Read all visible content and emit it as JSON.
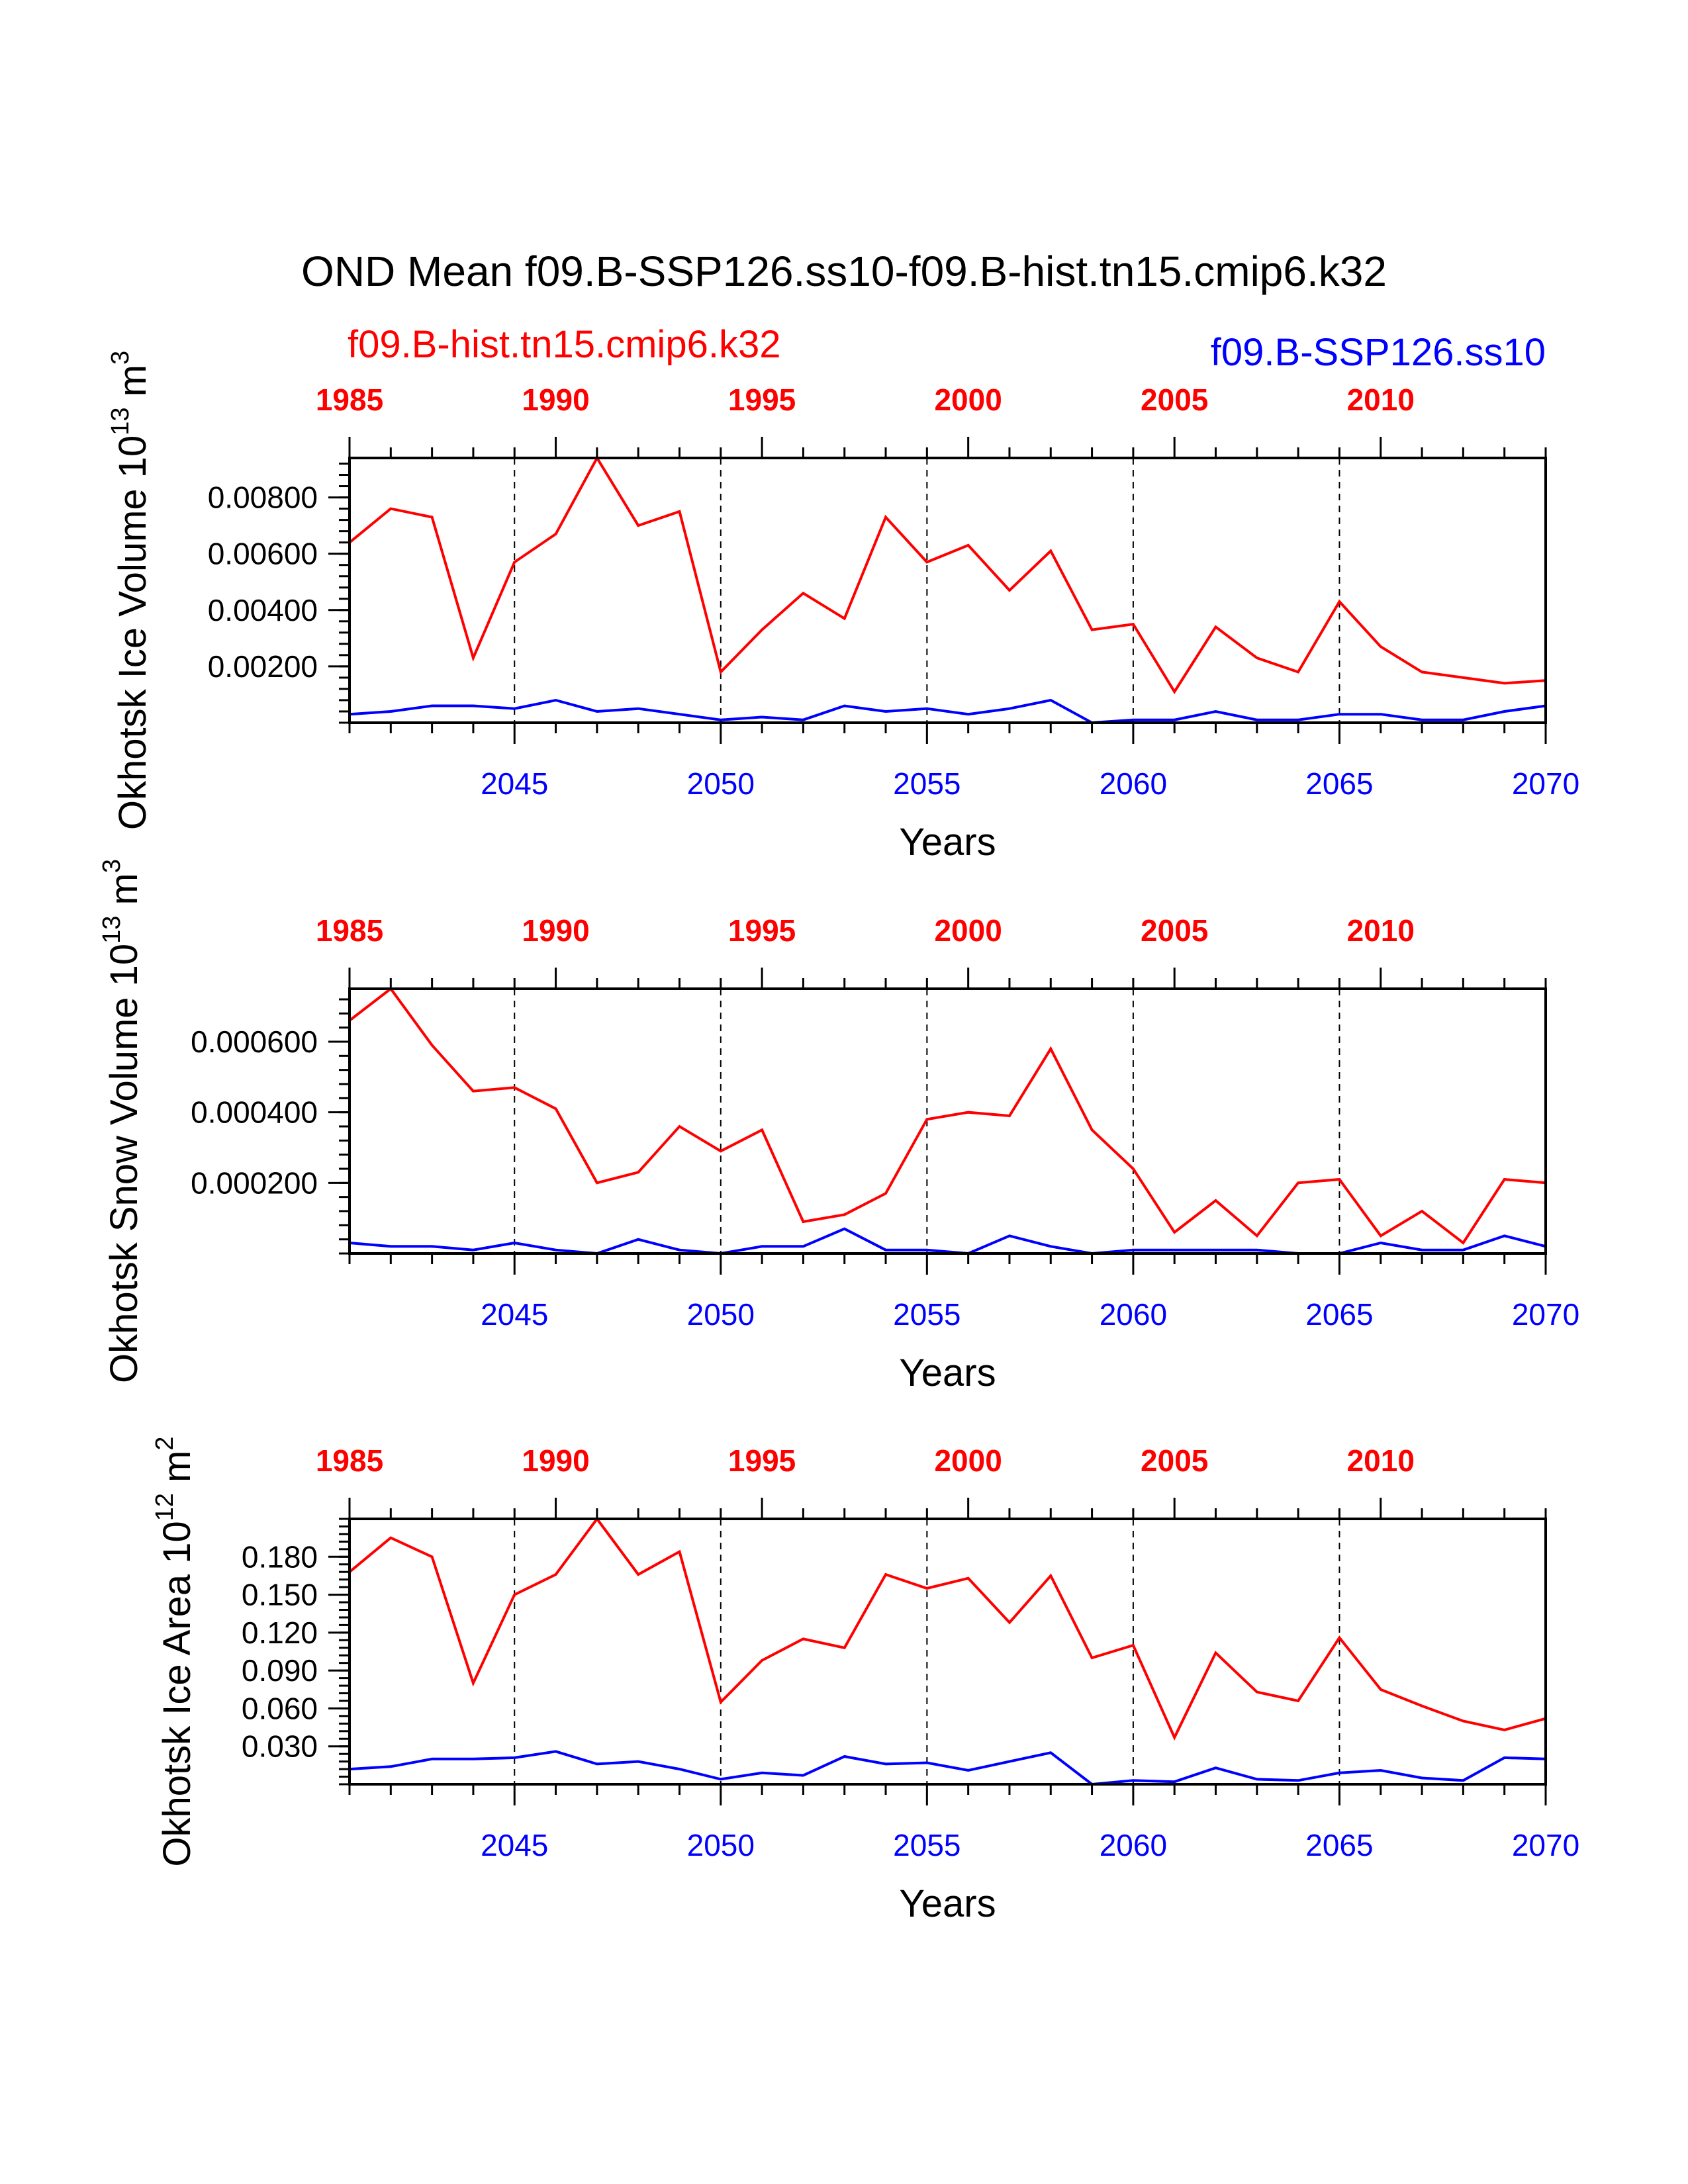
{
  "figure_title": "OND Mean f09.B-SSP126.ss10-f09.B-hist.tn15.cmip6.k32",
  "legend": {
    "left_label": "f09.B-hist.tn15.cmip6.k32",
    "right_label": "f09.B-SSP126.ss10"
  },
  "colors": {
    "hist": "#ff0000",
    "ssp": "#0000ff",
    "axis": "#000000"
  },
  "chart_data": [
    {
      "type": "line",
      "ylabel": "Okhotsk Ice Volume 10",
      "ylabel_exp": "13",
      "ylabel_unit": " m",
      "ylabel_unit_exp": "3",
      "xlabel": "Years",
      "ylim": [
        0,
        0.0094
      ],
      "yticks": [
        0.002,
        0.004,
        0.006,
        0.008
      ],
      "ytick_labels": [
        "0.00200",
        "0.00400",
        "0.00600",
        "0.00800"
      ],
      "grid_x": [
        2045,
        2050,
        2055,
        2060,
        2065
      ],
      "bottom_axis": {
        "range": [
          2041,
          2070
        ],
        "ticks": [
          2045,
          2050,
          2055,
          2060,
          2065,
          2070
        ],
        "labels": [
          "2045",
          "2050",
          "2055",
          "2060",
          "2065",
          "2070"
        ]
      },
      "top_axis": {
        "range": [
          1985,
          2014
        ],
        "ticks": [
          1985,
          1990,
          1995,
          2000,
          2005,
          2010
        ],
        "labels": [
          "1985",
          "1990",
          "1995",
          "2000",
          "2005",
          "2010"
        ]
      },
      "series": [
        {
          "name": "f09.B-hist.tn15.cmip6.k32",
          "color": "#ff0000",
          "values": [
            0.0064,
            0.0076,
            0.0073,
            0.0023,
            0.0057,
            0.0067,
            0.0094,
            0.007,
            0.0075,
            0.0018,
            0.0033,
            0.0046,
            0.0037,
            0.0073,
            0.0057,
            0.0063,
            0.0047,
            0.0061,
            0.0033,
            0.0035,
            0.0011,
            0.0034,
            0.0023,
            0.0018,
            0.0043,
            0.0027,
            0.0018,
            0.0016,
            0.0014,
            0.0015
          ]
        },
        {
          "name": "f09.B-SSP126.ss10",
          "color": "#0000ff",
          "values": [
            0.0003,
            0.0004,
            0.0006,
            0.0006,
            0.0005,
            0.0008,
            0.0004,
            0.0005,
            0.0003,
            0.0001,
            0.0002,
            0.0001,
            0.0006,
            0.0004,
            0.0005,
            0.0003,
            0.0005,
            0.0008,
            0.0,
            0.0001,
            0.0001,
            0.0004,
            0.0001,
            0.0001,
            0.0003,
            0.0003,
            0.0001,
            0.0001,
            0.0004,
            0.0006
          ]
        }
      ]
    },
    {
      "type": "line",
      "ylabel": "Okhotsk Snow Volume 10",
      "ylabel_exp": "13",
      "ylabel_unit": " m",
      "ylabel_unit_exp": "3",
      "xlabel": "Years",
      "ylim": [
        0,
        0.00075
      ],
      "yticks": [
        0.0002,
        0.0004,
        0.0006
      ],
      "ytick_labels": [
        "0.000200",
        "0.000400",
        "0.000600"
      ],
      "grid_x": [
        2045,
        2050,
        2055,
        2060,
        2065
      ],
      "bottom_axis": {
        "range": [
          2041,
          2070
        ],
        "ticks": [
          2045,
          2050,
          2055,
          2060,
          2065,
          2070
        ],
        "labels": [
          "2045",
          "2050",
          "2055",
          "2060",
          "2065",
          "2070"
        ]
      },
      "top_axis": {
        "range": [
          1985,
          2014
        ],
        "ticks": [
          1985,
          1990,
          1995,
          2000,
          2005,
          2010
        ],
        "labels": [
          "1985",
          "1990",
          "1995",
          "2000",
          "2005",
          "2010"
        ]
      },
      "series": [
        {
          "name": "f09.B-hist.tn15.cmip6.k32",
          "color": "#ff0000",
          "values": [
            0.00066,
            0.00075,
            0.00059,
            0.00046,
            0.00047,
            0.00041,
            0.0002,
            0.00023,
            0.00036,
            0.00029,
            0.00035,
            9e-05,
            0.00011,
            0.00017,
            0.00038,
            0.0004,
            0.00039,
            0.00058,
            0.00035,
            0.00024,
            6e-05,
            0.00015,
            5e-05,
            0.0002,
            0.00021,
            5e-05,
            0.00012,
            3e-05,
            0.00021,
            0.0002
          ]
        },
        {
          "name": "f09.B-SSP126.ss10",
          "color": "#0000ff",
          "values": [
            3e-05,
            2e-05,
            2e-05,
            1e-05,
            3e-05,
            1e-05,
            0.0,
            4e-05,
            1e-05,
            0.0,
            2e-05,
            2e-05,
            7e-05,
            1e-05,
            1e-05,
            0.0,
            5e-05,
            2e-05,
            0.0,
            1e-05,
            1e-05,
            1e-05,
            1e-05,
            0.0,
            0.0,
            3e-05,
            1e-05,
            1e-05,
            5e-05,
            2e-05
          ]
        }
      ]
    },
    {
      "type": "line",
      "ylabel": "Okhotsk Ice Area 10",
      "ylabel_exp": "12",
      "ylabel_unit": " m",
      "ylabel_unit_exp": "2",
      "xlabel": "Years",
      "ylim": [
        0,
        0.21
      ],
      "yticks": [
        0.03,
        0.06,
        0.09,
        0.12,
        0.15,
        0.18
      ],
      "ytick_labels": [
        "0.030",
        "0.060",
        "0.090",
        "0.120",
        "0.150",
        "0.180"
      ],
      "grid_x": [
        2045,
        2050,
        2055,
        2060,
        2065
      ],
      "bottom_axis": {
        "range": [
          2041,
          2070
        ],
        "ticks": [
          2045,
          2050,
          2055,
          2060,
          2065,
          2070
        ],
        "labels": [
          "2045",
          "2050",
          "2055",
          "2060",
          "2065",
          "2070"
        ]
      },
      "top_axis": {
        "range": [
          1985,
          2014
        ],
        "ticks": [
          1985,
          1990,
          1995,
          2000,
          2005,
          2010
        ],
        "labels": [
          "1985",
          "1990",
          "1995",
          "2000",
          "2005",
          "2010"
        ]
      },
      "series": [
        {
          "name": "f09.B-hist.tn15.cmip6.k32",
          "color": "#ff0000",
          "values": [
            0.168,
            0.195,
            0.18,
            0.08,
            0.15,
            0.166,
            0.21,
            0.166,
            0.184,
            0.065,
            0.098,
            0.115,
            0.108,
            0.166,
            0.155,
            0.163,
            0.128,
            0.165,
            0.1,
            0.11,
            0.037,
            0.104,
            0.073,
            0.066,
            0.116,
            0.075,
            0.062,
            0.05,
            0.043,
            0.052
          ]
        },
        {
          "name": "f09.B-SSP126.ss10",
          "color": "#0000ff",
          "values": [
            0.012,
            0.014,
            0.02,
            0.02,
            0.021,
            0.026,
            0.016,
            0.018,
            0.012,
            0.004,
            0.009,
            0.007,
            0.022,
            0.016,
            0.017,
            0.011,
            0.018,
            0.025,
            0.0,
            0.003,
            0.002,
            0.013,
            0.004,
            0.003,
            0.009,
            0.011,
            0.005,
            0.003,
            0.021,
            0.02
          ]
        }
      ]
    }
  ]
}
